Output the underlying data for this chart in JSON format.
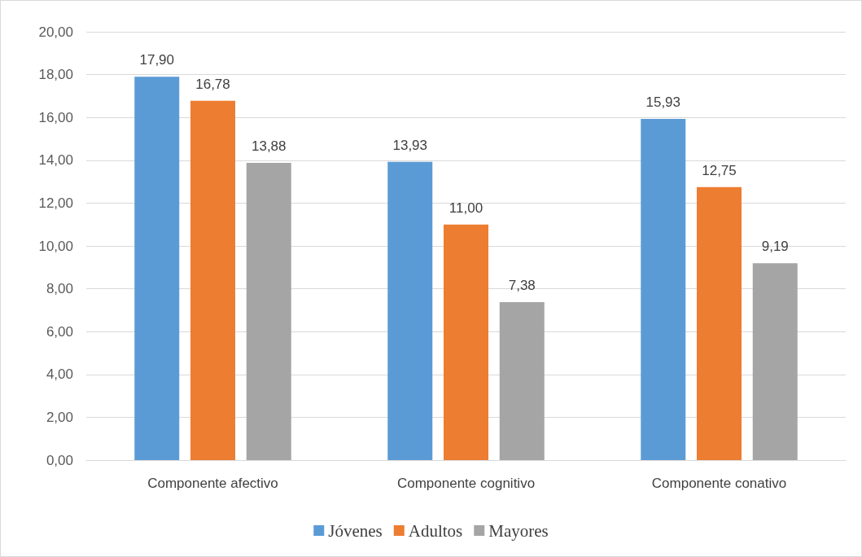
{
  "chart_data": {
    "type": "bar",
    "categories": [
      "Componente afectivo",
      "Componente cognitivo",
      "Componente conativo"
    ],
    "series": [
      {
        "name": "Jóvenes",
        "color": "#5b9bd5",
        "values": [
          17.9,
          13.93,
          15.93
        ],
        "value_labels": [
          "17,90",
          "13,93",
          "15,93"
        ]
      },
      {
        "name": "Adultos",
        "color": "#ed7d31",
        "values": [
          16.78,
          11.0,
          12.75
        ],
        "value_labels": [
          "16,78",
          "11,00",
          "12,75"
        ]
      },
      {
        "name": "Mayores",
        "color": "#a5a5a5",
        "values": [
          13.88,
          7.38,
          9.19
        ],
        "value_labels": [
          "13,88",
          "7,38",
          "9,19"
        ]
      }
    ],
    "ylim": [
      0,
      20
    ],
    "yticks": [
      {
        "value": 0,
        "label": "0,00"
      },
      {
        "value": 2,
        "label": "2,00"
      },
      {
        "value": 4,
        "label": "4,00"
      },
      {
        "value": 6,
        "label": "6,00"
      },
      {
        "value": 8,
        "label": "8,00"
      },
      {
        "value": 10,
        "label": "10,00"
      },
      {
        "value": 12,
        "label": "12,00"
      },
      {
        "value": 14,
        "label": "14,00"
      },
      {
        "value": 16,
        "label": "16,00"
      },
      {
        "value": 18,
        "label": "18,00"
      },
      {
        "value": 20,
        "label": "20,00"
      }
    ],
    "grid": true,
    "legend": "bottom"
  }
}
